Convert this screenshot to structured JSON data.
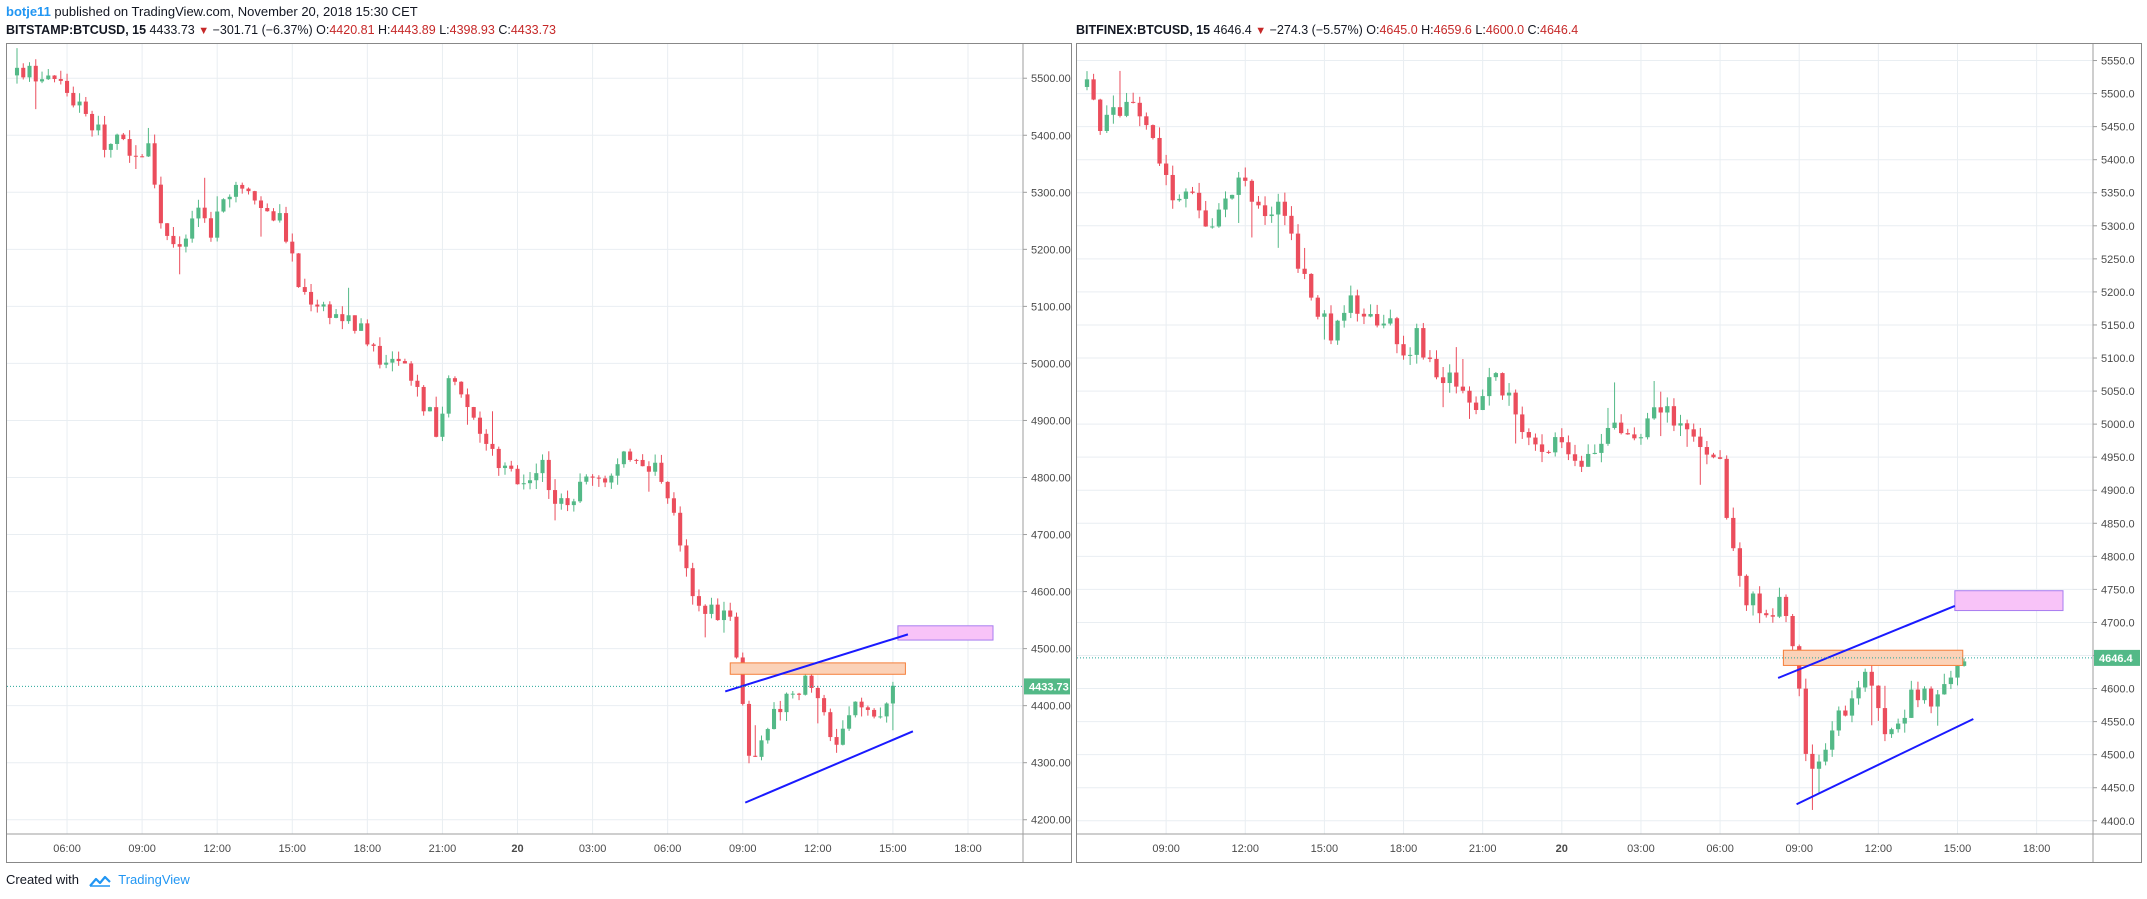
{
  "header": {
    "author": "botje11",
    "text": "published on TradingView.com, November 20, 2018 15:30 CET"
  },
  "charts_meta": [
    {
      "symbol": "BITSTAMP:BTCUSD, 15",
      "last": "4433.73",
      "change": "−301.71 (−6.37%)",
      "o_label": "O:",
      "o": "4420.81",
      "h_label": "H:",
      "h": "4443.89",
      "l_label": "L:",
      "l": "4398.93",
      "c_label": "C:",
      "c": "4433.73"
    },
    {
      "symbol": "BITFINEX:BTCUSD, 15",
      "last": "4646.4",
      "change": "−274.3 (−5.57%)",
      "o_label": "O:",
      "o": "4645.0",
      "h_label": "H:",
      "h": "4659.6",
      "l_label": "L:",
      "l": "4600.0",
      "c_label": "C:",
      "c": "4646.4"
    }
  ],
  "footer": {
    "created": "Created with",
    "brand": "TradingView"
  },
  "colors": {
    "up": "#53b987",
    "down": "#eb4d5c",
    "grid": "#e9eef2",
    "trendline": "#1a1aff",
    "resistance_fill": "#fbd2b8",
    "resistance_stroke": "#f57f3a",
    "target_fill": "#f8c3f8",
    "target_stroke": "#a77df0",
    "price_line": "#26a69a"
  },
  "chart_data": [
    {
      "type": "candlestick",
      "title": "BITSTAMP:BTCUSD, 15",
      "interval": "15",
      "ylim": [
        4175,
        5560
      ],
      "yticks": [
        "4200.00",
        "4300.00",
        "4400.00",
        "4500.00",
        "4600.00",
        "4700.00",
        "4800.00",
        "4900.00",
        "5000.00",
        "5100.00",
        "5200.00",
        "5300.00",
        "5400.00",
        "5500.00"
      ],
      "x_range_hours": [
        4.0,
        43.0
      ],
      "x_ticks": [
        {
          "label": "06:00",
          "h": 6
        },
        {
          "label": "09:00",
          "h": 9
        },
        {
          "label": "12:00",
          "h": 12
        },
        {
          "label": "15:00",
          "h": 15
        },
        {
          "label": "18:00",
          "h": 18
        },
        {
          "label": "21:00",
          "h": 21
        },
        {
          "label": "20",
          "h": 24
        },
        {
          "label": "03:00",
          "h": 27
        },
        {
          "label": "06:00",
          "h": 30
        },
        {
          "label": "09:00",
          "h": 33
        },
        {
          "label": "12:00",
          "h": 36
        },
        {
          "label": "15:00",
          "h": 39
        },
        {
          "label": "18:00",
          "h": 42
        }
      ],
      "last_price": 4433.73,
      "last_label": "4433.73",
      "close_path": [
        [
          4.0,
          5505
        ],
        [
          5.3,
          5510
        ],
        [
          5.8,
          5490
        ],
        [
          6.3,
          5460
        ],
        [
          7.0,
          5420
        ],
        [
          7.5,
          5390
        ],
        [
          8.5,
          5380
        ],
        [
          9.3,
          5370
        ],
        [
          9.8,
          5240
        ],
        [
          10.6,
          5200
        ],
        [
          11.3,
          5270
        ],
        [
          11.7,
          5220
        ],
        [
          12.3,
          5290
        ],
        [
          13.0,
          5300
        ],
        [
          14.0,
          5270
        ],
        [
          14.6,
          5250
        ],
        [
          15.3,
          5130
        ],
        [
          16.3,
          5100
        ],
        [
          17.0,
          5080
        ],
        [
          17.8,
          5060
        ],
        [
          18.7,
          5000
        ],
        [
          19.7,
          4980
        ],
        [
          20.4,
          4920
        ],
        [
          20.8,
          4880
        ],
        [
          21.3,
          4980
        ],
        [
          21.8,
          4930
        ],
        [
          22.5,
          4880
        ],
        [
          23.5,
          4810
        ],
        [
          24.3,
          4800
        ],
        [
          25.0,
          4820
        ],
        [
          25.6,
          4740
        ],
        [
          26.4,
          4780
        ],
        [
          27.0,
          4810
        ],
        [
          27.7,
          4800
        ],
        [
          28.6,
          4850
        ],
        [
          29.4,
          4820
        ],
        [
          29.9,
          4800
        ],
        [
          30.4,
          4700
        ],
        [
          30.8,
          4620
        ],
        [
          31.6,
          4570
        ],
        [
          32.5,
          4560
        ],
        [
          32.9,
          4450
        ],
        [
          33.3,
          4300
        ],
        [
          33.8,
          4360
        ],
        [
          34.3,
          4390
        ],
        [
          34.8,
          4410
        ],
        [
          35.6,
          4450
        ],
        [
          36.2,
          4380
        ],
        [
          36.8,
          4330
        ],
        [
          37.5,
          4400
        ],
        [
          38.4,
          4390
        ],
        [
          39.2,
          4430
        ]
      ],
      "zones": [
        {
          "name": "resistance-zone",
          "t0": 32.5,
          "t1": 39.5,
          "p0": 4455,
          "p1": 4475
        },
        {
          "name": "target-zone",
          "t0": 39.2,
          "t1": 43.0,
          "p0": 4515,
          "p1": 4540
        }
      ],
      "trendlines": [
        {
          "name": "upper-trendline",
          "t0": 32.3,
          "p0": 4425,
          "t1": 39.6,
          "p1": 4525
        },
        {
          "name": "lower-trendline",
          "t0": 33.1,
          "p0": 4230,
          "t1": 39.8,
          "p1": 4355
        }
      ]
    },
    {
      "type": "candlestick",
      "title": "BITFINEX:BTCUSD, 15",
      "interval": "15",
      "ylim": [
        4380,
        5575
      ],
      "yticks": [
        "4400.0",
        "4450.0",
        "4500.0",
        "4550.0",
        "4600.0",
        "4650.0",
        "4700.0",
        "4750.0",
        "4800.0",
        "4850.0",
        "4900.0",
        "4950.0",
        "5000.0",
        "5050.0",
        "5100.0",
        "5150.0",
        "5200.0",
        "5250.0",
        "5300.0",
        "5350.0",
        "5400.0",
        "5450.0",
        "5500.0",
        "5550.0"
      ],
      "x_range_hours": [
        6.0,
        43.0
      ],
      "x_ticks": [
        {
          "label": "09:00",
          "h": 9
        },
        {
          "label": "12:00",
          "h": 12
        },
        {
          "label": "15:00",
          "h": 15
        },
        {
          "label": "18:00",
          "h": 18
        },
        {
          "label": "21:00",
          "h": 21
        },
        {
          "label": "20",
          "h": 24
        },
        {
          "label": "03:00",
          "h": 27
        },
        {
          "label": "06:00",
          "h": 30
        },
        {
          "label": "09:00",
          "h": 33
        },
        {
          "label": "12:00",
          "h": 36
        },
        {
          "label": "15:00",
          "h": 39
        },
        {
          "label": "18:00",
          "h": 42
        }
      ],
      "last_price": 4646.4,
      "last_label": "4646.4",
      "close_path": [
        [
          6.0,
          5510
        ],
        [
          6.5,
          5450
        ],
        [
          7.2,
          5470
        ],
        [
          8.0,
          5480
        ],
        [
          8.6,
          5420
        ],
        [
          9.3,
          5330
        ],
        [
          10.0,
          5340
        ],
        [
          10.7,
          5300
        ],
        [
          11.3,
          5350
        ],
        [
          12.0,
          5360
        ],
        [
          12.7,
          5320
        ],
        [
          13.4,
          5330
        ],
        [
          14.0,
          5250
        ],
        [
          14.5,
          5180
        ],
        [
          15.2,
          5140
        ],
        [
          16.0,
          5180
        ],
        [
          16.6,
          5150
        ],
        [
          17.3,
          5170
        ],
        [
          17.9,
          5100
        ],
        [
          18.5,
          5130
        ],
        [
          19.2,
          5080
        ],
        [
          20.0,
          5060
        ],
        [
          20.7,
          5020
        ],
        [
          21.3,
          5070
        ],
        [
          22.0,
          5040
        ],
        [
          22.6,
          4990
        ],
        [
          23.3,
          4970
        ],
        [
          24.0,
          4960
        ],
        [
          24.7,
          4930
        ],
        [
          25.4,
          4970
        ],
        [
          26.0,
          5010
        ],
        [
          26.7,
          4980
        ],
        [
          27.3,
          5010
        ],
        [
          28.0,
          5020
        ],
        [
          28.7,
          4990
        ],
        [
          29.4,
          4960
        ],
        [
          30.0,
          4960
        ],
        [
          30.4,
          4820
        ],
        [
          30.9,
          4740
        ],
        [
          31.6,
          4720
        ],
        [
          32.4,
          4730
        ],
        [
          32.9,
          4640
        ],
        [
          33.3,
          4500
        ],
        [
          33.7,
          4480
        ],
        [
          34.2,
          4530
        ],
        [
          34.7,
          4570
        ],
        [
          35.4,
          4620
        ],
        [
          36.2,
          4550
        ],
        [
          36.7,
          4530
        ],
        [
          37.3,
          4600
        ],
        [
          38.0,
          4580
        ],
        [
          38.5,
          4610
        ],
        [
          39.3,
          4646
        ]
      ],
      "zones": [
        {
          "name": "resistance-zone",
          "t0": 32.4,
          "t1": 39.2,
          "p0": 4635,
          "p1": 4658
        },
        {
          "name": "target-zone",
          "t0": 38.9,
          "t1": 43.0,
          "p0": 4718,
          "p1": 4748
        }
      ],
      "trendlines": [
        {
          "name": "upper-trendline",
          "t0": 32.2,
          "p0": 4616,
          "t1": 38.9,
          "p1": 4725
        },
        {
          "name": "lower-trendline",
          "t0": 32.9,
          "p0": 4425,
          "t1": 39.6,
          "p1": 4554
        }
      ]
    }
  ]
}
